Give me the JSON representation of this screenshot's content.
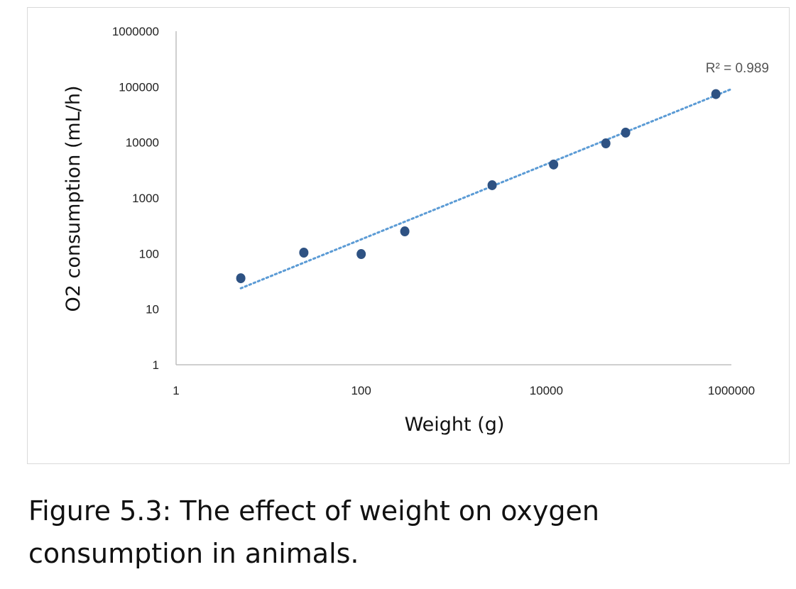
{
  "chart_data": {
    "type": "scatter",
    "xlabel": "Weight (g)",
    "ylabel": "O2 consumption (mL/h)",
    "x_scale": "log",
    "y_scale": "log",
    "xlim": [
      1,
      1000000
    ],
    "ylim": [
      1,
      1000000
    ],
    "x_ticks": [
      "1",
      "100",
      "10000",
      "1000000"
    ],
    "x_tick_values": [
      1,
      100,
      10000,
      1000000
    ],
    "y_ticks": [
      "1",
      "10",
      "100",
      "1000",
      "10000",
      "100000",
      "1000000"
    ],
    "y_tick_values": [
      1,
      10,
      100,
      1000,
      10000,
      100000,
      1000000
    ],
    "grid": false,
    "points": [
      {
        "x": 5,
        "y": 36
      },
      {
        "x": 24,
        "y": 104
      },
      {
        "x": 100,
        "y": 98
      },
      {
        "x": 296,
        "y": 251
      },
      {
        "x": 2600,
        "y": 1700
      },
      {
        "x": 12000,
        "y": 4000
      },
      {
        "x": 44000,
        "y": 9600
      },
      {
        "x": 72000,
        "y": 15000
      },
      {
        "x": 680000,
        "y": 74000
      }
    ],
    "marker_color": "#2e5283",
    "trendline": {
      "type": "power",
      "coefficient": 8,
      "exponent": 0.676,
      "x_range": [
        5,
        1000000
      ],
      "color": "#5b9bd5",
      "style": "dotted",
      "label": "R² = 0.989"
    }
  },
  "caption": {
    "line1": "Figure 5.3:  The effect of weight on oxygen",
    "line2": "consumption in animals."
  }
}
